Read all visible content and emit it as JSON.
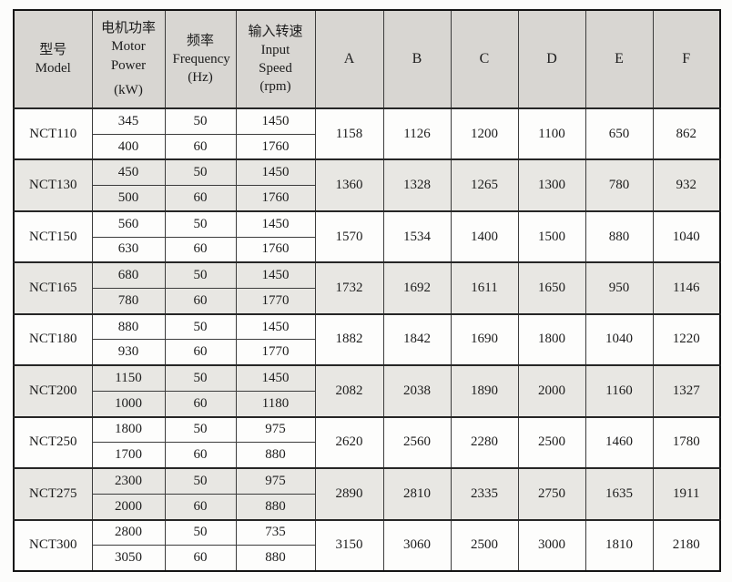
{
  "table": {
    "header": {
      "model": {
        "zh": "型号",
        "en": "Model"
      },
      "power": {
        "zh": "电机功率",
        "en": "Motor Power",
        "unit": "(kW)"
      },
      "freq": {
        "zh": "频率",
        "en": "Frequency",
        "unit": "(Hz)"
      },
      "speed": {
        "zh": "输入转速",
        "en": "Input Speed",
        "unit": "(rpm)"
      },
      "letters": [
        "A",
        "B",
        "C",
        "D",
        "E",
        "F"
      ]
    },
    "rows": [
      {
        "model": "NCT110",
        "variants": [
          [
            "345",
            "50",
            "1450"
          ],
          [
            "400",
            "60",
            "1760"
          ]
        ],
        "dims": [
          "1158",
          "1126",
          "1200",
          "1100",
          "650",
          "862"
        ]
      },
      {
        "model": "NCT130",
        "variants": [
          [
            "450",
            "50",
            "1450"
          ],
          [
            "500",
            "60",
            "1760"
          ]
        ],
        "dims": [
          "1360",
          "1328",
          "1265",
          "1300",
          "780",
          "932"
        ]
      },
      {
        "model": "NCT150",
        "variants": [
          [
            "560",
            "50",
            "1450"
          ],
          [
            "630",
            "60",
            "1760"
          ]
        ],
        "dims": [
          "1570",
          "1534",
          "1400",
          "1500",
          "880",
          "1040"
        ]
      },
      {
        "model": "NCT165",
        "variants": [
          [
            "680",
            "50",
            "1450"
          ],
          [
            "780",
            "60",
            "1770"
          ]
        ],
        "dims": [
          "1732",
          "1692",
          "1611",
          "1650",
          "950",
          "1146"
        ]
      },
      {
        "model": "NCT180",
        "variants": [
          [
            "880",
            "50",
            "1450"
          ],
          [
            "930",
            "60",
            "1770"
          ]
        ],
        "dims": [
          "1882",
          "1842",
          "1690",
          "1800",
          "1040",
          "1220"
        ]
      },
      {
        "model": "NCT200",
        "variants": [
          [
            "1150",
            "50",
            "1450"
          ],
          [
            "1000",
            "60",
            "1180"
          ]
        ],
        "dims": [
          "2082",
          "2038",
          "1890",
          "2000",
          "1160",
          "1327"
        ]
      },
      {
        "model": "NCT250",
        "variants": [
          [
            "1800",
            "50",
            "975"
          ],
          [
            "1700",
            "60",
            "880"
          ]
        ],
        "dims": [
          "2620",
          "2560",
          "2280",
          "2500",
          "1460",
          "1780"
        ]
      },
      {
        "model": "NCT275",
        "variants": [
          [
            "2300",
            "50",
            "975"
          ],
          [
            "2000",
            "60",
            "880"
          ]
        ],
        "dims": [
          "2890",
          "2810",
          "2335",
          "2750",
          "1635",
          "1911"
        ]
      },
      {
        "model": "NCT300",
        "variants": [
          [
            "2800",
            "50",
            "735"
          ],
          [
            "3050",
            "60",
            "880"
          ]
        ],
        "dims": [
          "3150",
          "3060",
          "2500",
          "3000",
          "1810",
          "2180"
        ]
      }
    ],
    "colors": {
      "header_bg": "#d8d6d2",
      "alt_row_bg": "#e8e7e3",
      "row_bg": "#fdfdfc",
      "inner_border": "#3c3c3c",
      "outer_border": "#141414",
      "text": "#1c1c1c"
    }
  }
}
